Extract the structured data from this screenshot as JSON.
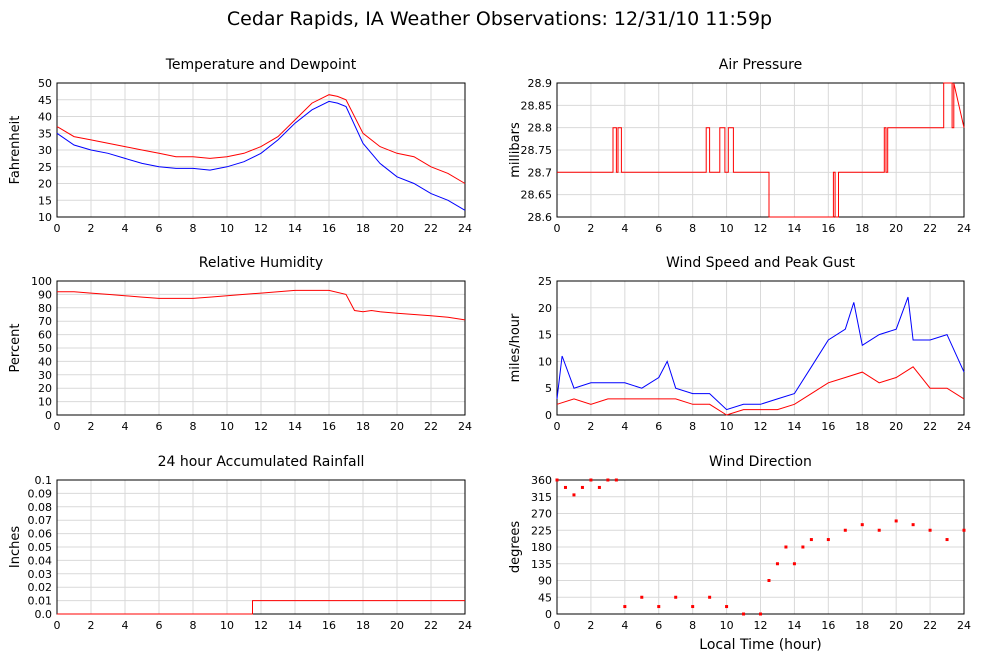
{
  "page": {
    "title": "Cedar Rapids, IA Weather Observations: 12/31/10 11:59p"
  },
  "colors": {
    "series_primary": "#ff0000",
    "series_secondary": "#0000ff",
    "grid": "#d9d9d9",
    "frame": "#000000"
  },
  "chart_data": [
    {
      "type": "line",
      "title": "Temperature and Dewpoint",
      "xlabel": "",
      "ylabel": "Fahrenheit",
      "xlim": [
        0,
        24
      ],
      "ylim": [
        10,
        50
      ],
      "x_ticks": [
        0,
        2,
        4,
        6,
        8,
        10,
        12,
        14,
        16,
        18,
        20,
        22,
        24
      ],
      "y_ticks": [
        10,
        15,
        20,
        25,
        30,
        35,
        40,
        45,
        50
      ],
      "grid": true,
      "series": [
        {
          "color": "#ff0000",
          "x": [
            0,
            1,
            2,
            3,
            4,
            5,
            6,
            7,
            8,
            9,
            10,
            11,
            12,
            13,
            14,
            15,
            16,
            16.5,
            17,
            18,
            19,
            20,
            21,
            22,
            23,
            24
          ],
          "values": [
            37,
            34,
            33,
            32,
            31,
            30,
            29,
            28,
            28,
            27.5,
            28,
            29,
            31,
            34,
            39,
            44,
            46.5,
            46,
            45,
            35,
            31,
            29,
            28,
            25,
            23,
            20
          ]
        },
        {
          "color": "#0000ff",
          "x": [
            0,
            1,
            2,
            3,
            4,
            5,
            6,
            7,
            8,
            9,
            10,
            11,
            12,
            13,
            14,
            15,
            16,
            16.5,
            17,
            18,
            19,
            20,
            21,
            22,
            23,
            24
          ],
          "values": [
            35,
            31.5,
            30,
            29,
            27.5,
            26,
            25,
            24.5,
            24.5,
            24,
            25,
            26.5,
            29,
            33,
            38,
            42,
            44.5,
            44,
            43,
            32,
            26,
            22,
            20,
            17,
            15,
            12
          ]
        }
      ]
    },
    {
      "type": "line",
      "title": "Air Pressure",
      "xlabel": "",
      "ylabel": "millibars",
      "xlim": [
        0,
        24
      ],
      "ylim": [
        28.6,
        28.9
      ],
      "x_ticks": [
        0,
        2,
        4,
        6,
        8,
        10,
        12,
        14,
        16,
        18,
        20,
        22,
        24
      ],
      "y_ticks": [
        "28.6",
        "28.65",
        "28.7",
        "28.75",
        "28.8",
        "28.85",
        "28.9"
      ],
      "grid": true,
      "series": [
        {
          "color": "#ff0000",
          "x": [
            0,
            3.3,
            3.3,
            3.5,
            3.5,
            3.6,
            3.6,
            3.8,
            3.8,
            8.8,
            8.8,
            9.0,
            9.0,
            9.6,
            9.6,
            9.9,
            9.9,
            10.1,
            10.1,
            10.4,
            10.4,
            12.5,
            12.5,
            16.3,
            16.3,
            16.4,
            16.4,
            16.6,
            16.6,
            16.7,
            16.7,
            19.3,
            19.3,
            19.4,
            19.4,
            19.5,
            19.5,
            22.8,
            22.8,
            23.3,
            23.3,
            23.4,
            23.4,
            24
          ],
          "values": [
            28.7,
            28.7,
            28.8,
            28.8,
            28.7,
            28.7,
            28.8,
            28.8,
            28.7,
            28.7,
            28.8,
            28.8,
            28.7,
            28.7,
            28.8,
            28.8,
            28.7,
            28.7,
            28.8,
            28.8,
            28.7,
            28.7,
            28.6,
            28.6,
            28.7,
            28.7,
            28.6,
            28.6,
            28.7,
            28.7,
            28.7,
            28.7,
            28.8,
            28.8,
            28.7,
            28.7,
            28.8,
            28.8,
            28.9,
            28.9,
            28.8,
            28.8,
            28.9,
            28.8
          ]
        }
      ]
    },
    {
      "type": "line",
      "title": "Relative Humidity",
      "xlabel": "",
      "ylabel": "Percent",
      "xlim": [
        0,
        24
      ],
      "ylim": [
        0,
        100
      ],
      "x_ticks": [
        0,
        2,
        4,
        6,
        8,
        10,
        12,
        14,
        16,
        18,
        20,
        22,
        24
      ],
      "y_ticks": [
        0,
        10,
        20,
        30,
        40,
        50,
        60,
        70,
        80,
        90,
        100
      ],
      "grid": true,
      "series": [
        {
          "color": "#ff0000",
          "x": [
            0,
            1,
            2,
            3,
            4,
            5,
            6,
            6.5,
            7,
            8,
            9,
            10,
            11,
            12,
            13,
            14,
            15,
            16,
            17,
            17.5,
            18,
            18.5,
            19,
            20,
            21,
            22,
            23,
            24
          ],
          "values": [
            92,
            92,
            91,
            90,
            89,
            88,
            87,
            87,
            87,
            87,
            88,
            89,
            90,
            91,
            92,
            93,
            93,
            93,
            90,
            78,
            77,
            78,
            77,
            76,
            75,
            74,
            73,
            71
          ]
        }
      ]
    },
    {
      "type": "line",
      "title": "Wind Speed and Peak Gust",
      "xlabel": "",
      "ylabel": "miles/hour",
      "xlim": [
        0,
        24
      ],
      "ylim": [
        0,
        25
      ],
      "x_ticks": [
        0,
        2,
        4,
        6,
        8,
        10,
        12,
        14,
        16,
        18,
        20,
        22,
        24
      ],
      "y_ticks": [
        0,
        5,
        10,
        15,
        20,
        25
      ],
      "grid": true,
      "series": [
        {
          "color": "#0000ff",
          "x": [
            0,
            0.3,
            1,
            2,
            3,
            4,
            5,
            6,
            6.5,
            7,
            8,
            9,
            10,
            11,
            12,
            13,
            14,
            15,
            16,
            17,
            17.5,
            18,
            19,
            20,
            20.7,
            21,
            22,
            23,
            24
          ],
          "values": [
            3,
            11,
            5,
            6,
            6,
            6,
            5,
            7,
            10,
            5,
            4,
            4,
            1,
            2,
            2,
            3,
            4,
            9,
            14,
            16,
            21,
            13,
            15,
            16,
            22,
            14,
            14,
            15,
            8
          ]
        },
        {
          "color": "#ff0000",
          "x": [
            0,
            1,
            2,
            3,
            4,
            5,
            6,
            7,
            8,
            9,
            10,
            11,
            12,
            13,
            14,
            15,
            16,
            17,
            18,
            19,
            20,
            21,
            22,
            23,
            24
          ],
          "values": [
            2,
            3,
            2,
            3,
            3,
            3,
            3,
            3,
            2,
            2,
            0,
            1,
            1,
            1,
            2,
            4,
            6,
            7,
            8,
            6,
            7,
            9,
            5,
            5,
            3
          ]
        }
      ]
    },
    {
      "type": "line",
      "title": "24 hour Accumulated Rainfall",
      "xlabel": "",
      "ylabel": "Inches",
      "xlim": [
        0,
        24
      ],
      "ylim": [
        0,
        0.1
      ],
      "x_ticks": [
        0,
        2,
        4,
        6,
        8,
        10,
        12,
        14,
        16,
        18,
        20,
        22,
        24
      ],
      "y_ticks": [
        "0.0",
        "0.01",
        "0.02",
        "0.03",
        "0.04",
        "0.05",
        "0.06",
        "0.07",
        "0.08",
        "0.09",
        "0.1"
      ],
      "grid": true,
      "series": [
        {
          "color": "#ff0000",
          "x": [
            0,
            11.5,
            11.5,
            24
          ],
          "values": [
            0,
            0,
            0.01,
            0.01
          ]
        }
      ]
    },
    {
      "type": "scatter",
      "title": "Wind Direction",
      "xlabel": "Local Time (hour)",
      "ylabel": "degrees",
      "xlim": [
        0,
        24
      ],
      "ylim": [
        0,
        360
      ],
      "x_ticks": [
        0,
        2,
        4,
        6,
        8,
        10,
        12,
        14,
        16,
        18,
        20,
        22,
        24
      ],
      "y_ticks": [
        0,
        45,
        90,
        135,
        180,
        225,
        270,
        315,
        360
      ],
      "grid": true,
      "series": [
        {
          "color": "#ff0000",
          "x": [
            0,
            0.5,
            1,
            1.5,
            2,
            2.5,
            3,
            3.5,
            4,
            5,
            6,
            7,
            8,
            9,
            10,
            11,
            12,
            12.5,
            13,
            13.5,
            14,
            14.5,
            15,
            16,
            17,
            18,
            19,
            20,
            21,
            22,
            23,
            24
          ],
          "values": [
            360,
            340,
            320,
            340,
            360,
            340,
            360,
            360,
            20,
            45,
            20,
            45,
            20,
            45,
            20,
            0,
            0,
            90,
            135,
            180,
            135,
            180,
            200,
            200,
            225,
            240,
            225,
            250,
            240,
            225,
            200,
            225
          ]
        }
      ]
    }
  ]
}
